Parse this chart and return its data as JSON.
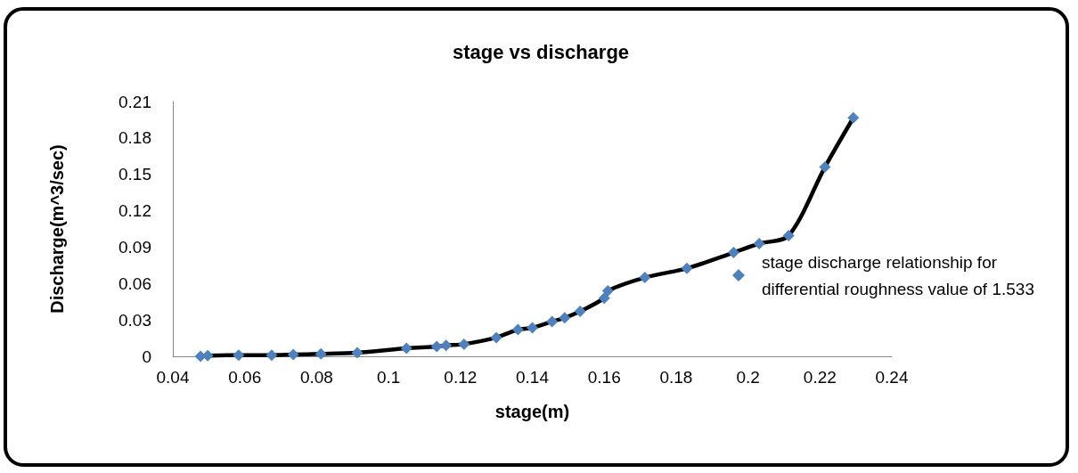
{
  "chart_data": {
    "type": "line",
    "title": "stage vs discharge",
    "xlabel": "stage(m)",
    "ylabel": "Discharge(m^3/sec)",
    "x": [
      0.0477,
      0.0497,
      0.0583,
      0.0675,
      0.0735,
      0.0812,
      0.0913,
      0.105,
      0.1134,
      0.116,
      0.121,
      0.13,
      0.136,
      0.14,
      0.1455,
      0.149,
      0.1533,
      0.16,
      0.161,
      0.1713,
      0.183,
      0.196,
      0.2031,
      0.2113,
      0.2214,
      0.2293
    ],
    "series": [
      {
        "name": "stage discharge relationship for differential roughness value of 1.533",
        "color": "#4f81bd",
        "values": [
          0,
          0.0005,
          0.001,
          0.001,
          0.0015,
          0.002,
          0.003,
          0.0066,
          0.008,
          0.009,
          0.01,
          0.0155,
          0.022,
          0.0235,
          0.0287,
          0.0317,
          0.037,
          0.048,
          0.054,
          0.0649,
          0.0725,
          0.0855,
          0.0929,
          0.0995,
          0.156,
          0.1966
        ]
      }
    ],
    "xlim": [
      0.04,
      0.24
    ],
    "xticks": [
      0.04,
      0.06,
      0.08,
      0.1,
      0.12,
      0.14,
      0.16,
      0.18,
      0.2,
      0.22,
      0.24
    ],
    "ylim": [
      0,
      0.21
    ],
    "yticks": [
      0,
      0.03,
      0.06,
      0.09,
      0.12,
      0.15,
      0.18,
      0.21
    ],
    "grid": false,
    "legend": "right",
    "marker": "diamond",
    "line_style": "solid"
  }
}
